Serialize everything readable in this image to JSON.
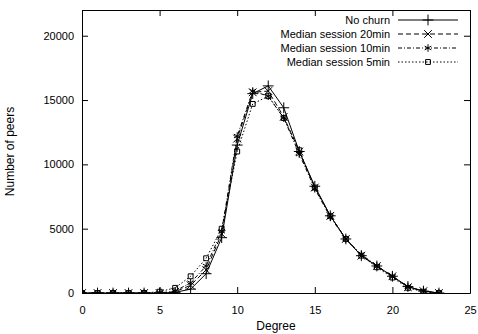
{
  "chart_data": {
    "type": "line",
    "x_label": "Degree",
    "y_label": "Number of peers",
    "x": [
      0,
      1,
      2,
      3,
      4,
      5,
      6,
      7,
      8,
      9,
      10,
      11,
      12,
      13,
      14,
      15,
      16,
      17,
      18,
      19,
      20,
      21,
      22,
      23
    ],
    "xlim": [
      0,
      25
    ],
    "xticks": [
      0,
      5,
      10,
      15,
      20,
      25
    ],
    "ylim": [
      0,
      22000
    ],
    "yticks": [
      0,
      5000,
      10000,
      15000,
      20000
    ],
    "grid": false,
    "legend": "top-right",
    "series": [
      {
        "name": "No churn",
        "color": "#000000",
        "marker": "plus",
        "line_style": "solid",
        "values": [
          0,
          0,
          0,
          0,
          0,
          0,
          50,
          300,
          1500,
          4300,
          11500,
          15500,
          16100,
          14400,
          11000,
          8300,
          6000,
          4200,
          2900,
          2100,
          1300,
          500,
          150,
          0
        ]
      },
      {
        "name": "Median session 20min",
        "color": "#000000",
        "marker": "cross",
        "line_style": "dashed",
        "values": [
          0,
          0,
          0,
          0,
          0,
          0,
          100,
          600,
          1800,
          4600,
          12000,
          15600,
          15700,
          13700,
          11000,
          8200,
          6000,
          4200,
          2900,
          2100,
          1300,
          450,
          150,
          0
        ]
      },
      {
        "name": "Median session 10min",
        "color": "#000000",
        "marker": "star",
        "line_style": "dashdot",
        "values": [
          0,
          0,
          0,
          0,
          0,
          0,
          150,
          800,
          2100,
          4800,
          12200,
          15700,
          15300,
          13600,
          10800,
          8100,
          5900,
          4200,
          3000,
          2100,
          1300,
          500,
          150,
          0
        ]
      },
      {
        "name": "Median session 5min",
        "color": "#000000",
        "marker": "square",
        "line_style": "dotted",
        "values": [
          0,
          0,
          0,
          0,
          0,
          100,
          400,
          1300,
          2700,
          5000,
          11000,
          14700,
          15300,
          13600,
          11100,
          8200,
          6000,
          4200,
          2900,
          2000,
          1200,
          400,
          100,
          0
        ]
      }
    ]
  }
}
